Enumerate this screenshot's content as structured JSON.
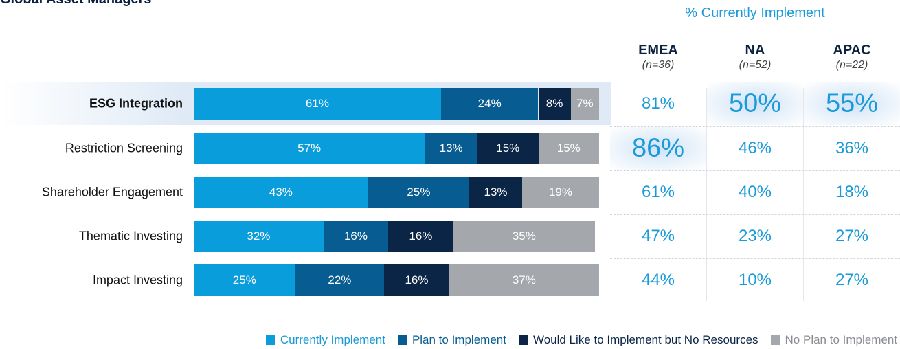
{
  "title": "Global Asset Managers",
  "colors": {
    "currently": "#0a9ddc",
    "plan": "#075c91",
    "would_like": "#0b2547",
    "no_plan": "#a4a7ab",
    "accent": "#1a9ad8"
  },
  "chart_data": {
    "type": "bar",
    "orientation": "horizontal",
    "stacked": true,
    "categories": [
      "ESG Integration",
      "Restriction Screening",
      "Shareholder Engagement",
      "Thematic Investing",
      "Impact Investing"
    ],
    "highlighted_category": "ESG Integration",
    "series": [
      {
        "name": "Currently Implement",
        "values": [
          61,
          57,
          43,
          32,
          25
        ],
        "labels": [
          "61%",
          "57%",
          "43%",
          "32%",
          "25%"
        ]
      },
      {
        "name": "Plan to Implement",
        "values": [
          24,
          13,
          25,
          16,
          22
        ],
        "labels": [
          "24%",
          "13%",
          "25%",
          "16%",
          "22%"
        ]
      },
      {
        "name": "Would Like to Implement but No Resources",
        "values": [
          8,
          15,
          13,
          16,
          16
        ],
        "labels": [
          "8%",
          "15%",
          "13%",
          "16%",
          "16%"
        ]
      },
      {
        "name": "No Plan to Implement",
        "values": [
          7,
          15,
          19,
          35,
          37
        ],
        "labels": [
          "7%",
          "15%",
          "19%",
          "35%",
          "37%"
        ]
      }
    ],
    "xlim": [
      0,
      100
    ],
    "legend_position": "bottom-right",
    "grid": false
  },
  "regional_table": {
    "title": "% Currently Implement",
    "columns": [
      {
        "name": "EMEA",
        "n": "(n=36)"
      },
      {
        "name": "NA",
        "n": "(n=52)"
      },
      {
        "name": "APAC",
        "n": "(n=22)"
      }
    ],
    "rows": [
      {
        "values": [
          "81%",
          "50%",
          "55%"
        ],
        "highlight": [
          false,
          true,
          true
        ]
      },
      {
        "values": [
          "86%",
          "46%",
          "36%"
        ],
        "highlight": [
          true,
          false,
          false
        ]
      },
      {
        "values": [
          "61%",
          "40%",
          "18%"
        ],
        "highlight": [
          false,
          false,
          false
        ]
      },
      {
        "values": [
          "47%",
          "23%",
          "27%"
        ],
        "highlight": [
          false,
          false,
          false
        ]
      },
      {
        "values": [
          "44%",
          "10%",
          "27%"
        ],
        "highlight": [
          false,
          false,
          false
        ]
      }
    ]
  }
}
